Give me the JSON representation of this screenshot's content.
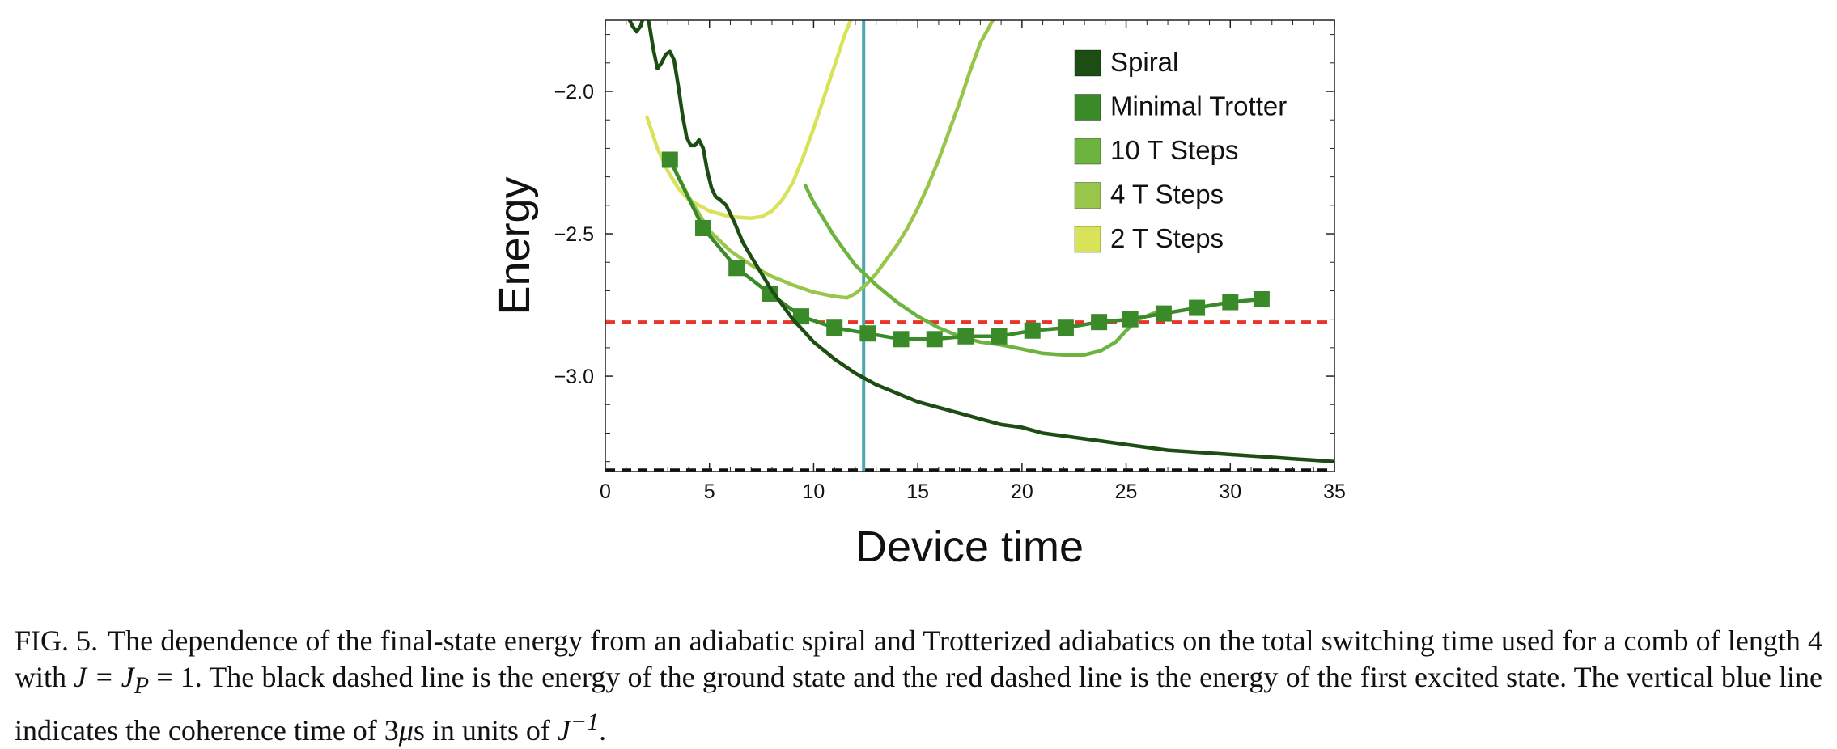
{
  "figure": {
    "caption_label": "FIG. 5.",
    "caption_segments": [
      {
        "text": "The dependence of the final-state energy from an adiabatic spiral and Trotterized adiabatics on the total switching time used for a comb of length 4 with ",
        "math": false
      },
      {
        "text": "J = J",
        "math": true
      },
      {
        "text": "P",
        "math": true,
        "sub": true
      },
      {
        "text": " = 1. The black dashed line is the energy of the ground state and the red dashed line is the energy of the first excited state. The vertical blue line indicates the coherence time of 3",
        "math": false
      },
      {
        "text": "μ",
        "math": true
      },
      {
        "text": "s in units of ",
        "math": false
      },
      {
        "text": "J",
        "math": true
      },
      {
        "text": "−1",
        "math": true,
        "sup": true
      },
      {
        "text": ".",
        "math": false
      }
    ]
  },
  "chart_data": {
    "type": "line",
    "title": "",
    "xlabel": "Device time",
    "ylabel": "Energy",
    "xlim": [
      0,
      35
    ],
    "ylim": [
      -3.335,
      -1.75
    ],
    "xticks": [
      0,
      5,
      10,
      15,
      20,
      25,
      30,
      35
    ],
    "xtick_labels": [
      "0",
      "5",
      "10",
      "15",
      "20",
      "25",
      "30",
      "35"
    ],
    "yticks": [
      -2.0,
      -2.5,
      -3.0
    ],
    "ytick_labels": [
      "−2.0",
      "−2.5",
      "−3.0"
    ],
    "grid": false,
    "legend_position": "top-right",
    "series": [
      {
        "name": "Spiral",
        "color": "#1e4d14",
        "marker": "none",
        "x": [
          1.1,
          1.3,
          1.5,
          1.7,
          1.9,
          2.1,
          2.3,
          2.5,
          2.7,
          2.9,
          3.1,
          3.3,
          3.5,
          3.7,
          3.9,
          4.1,
          4.3,
          4.5,
          4.7,
          4.9,
          5.1,
          5.3,
          5.5,
          5.8,
          6.2,
          6.6,
          7.0,
          7.5,
          8.0,
          8.5,
          9.0,
          9.5,
          10,
          11,
          12,
          13,
          14,
          15,
          16,
          17,
          18,
          19,
          20,
          21,
          22,
          23,
          24,
          25,
          26,
          27,
          28,
          29,
          30,
          31,
          32,
          33,
          34,
          35
        ],
        "y": [
          -1.74,
          -1.77,
          -1.79,
          -1.77,
          -1.72,
          -1.76,
          -1.85,
          -1.92,
          -1.9,
          -1.87,
          -1.86,
          -1.89,
          -1.98,
          -2.08,
          -2.16,
          -2.19,
          -2.19,
          -2.17,
          -2.2,
          -2.28,
          -2.34,
          -2.37,
          -2.38,
          -2.4,
          -2.46,
          -2.53,
          -2.58,
          -2.64,
          -2.7,
          -2.75,
          -2.8,
          -2.84,
          -2.88,
          -2.94,
          -2.99,
          -3.03,
          -3.06,
          -3.09,
          -3.11,
          -3.13,
          -3.15,
          -3.17,
          -3.18,
          -3.2,
          -3.21,
          -3.22,
          -3.23,
          -3.24,
          -3.25,
          -3.26,
          -3.265,
          -3.27,
          -3.275,
          -3.28,
          -3.285,
          -3.29,
          -3.295,
          -3.3
        ]
      },
      {
        "name": "Minimal Trotter",
        "color": "#3b8a2a",
        "marker": "square",
        "x": [
          3.1,
          4.7,
          6.3,
          7.9,
          9.4,
          11.0,
          12.6,
          14.2,
          15.8,
          17.3,
          18.9,
          20.5,
          22.1,
          23.7,
          25.2,
          26.8,
          28.4,
          30.0,
          31.5
        ],
        "y": [
          -2.24,
          -2.48,
          -2.62,
          -2.71,
          -2.79,
          -2.83,
          -2.85,
          -2.87,
          -2.87,
          -2.86,
          -2.86,
          -2.84,
          -2.83,
          -2.81,
          -2.8,
          -2.78,
          -2.76,
          -2.74,
          -2.73
        ]
      },
      {
        "name": "10 T Steps",
        "color": "#6db33f",
        "marker": "none",
        "x": [
          9.6,
          10,
          11,
          12,
          13,
          14,
          15,
          16,
          17,
          18,
          19,
          20,
          21,
          22,
          23,
          23.8,
          24.5,
          25,
          25.6,
          26.3,
          27
        ],
        "y": [
          -2.33,
          -2.39,
          -2.51,
          -2.61,
          -2.68,
          -2.74,
          -2.79,
          -2.83,
          -2.86,
          -2.88,
          -2.89,
          -2.905,
          -2.92,
          -2.925,
          -2.925,
          -2.91,
          -2.88,
          -2.84,
          -2.8,
          -2.78,
          -2.77
        ]
      },
      {
        "name": "4 T Steps",
        "color": "#98c54a",
        "marker": "none",
        "x": [
          3.1,
          4,
          5,
          6,
          7,
          8,
          9,
          10,
          11,
          11.6,
          12,
          12.5,
          13,
          13.5,
          14,
          14.5,
          15,
          15.5,
          16,
          16.5,
          17,
          17.5,
          18,
          18.6
        ],
        "y": [
          -2.24,
          -2.37,
          -2.49,
          -2.56,
          -2.61,
          -2.65,
          -2.68,
          -2.705,
          -2.72,
          -2.725,
          -2.71,
          -2.68,
          -2.64,
          -2.59,
          -2.54,
          -2.48,
          -2.41,
          -2.33,
          -2.24,
          -2.14,
          -2.04,
          -1.93,
          -1.83,
          -1.75
        ]
      },
      {
        "name": "2 T Steps",
        "color": "#d8e35a",
        "marker": "none",
        "x": [
          2.0,
          2.5,
          3,
          3.5,
          4,
          5,
          6,
          7,
          7.5,
          8,
          8.5,
          9,
          9.5,
          10,
          10.5,
          11,
          11.5,
          12
        ],
        "y": [
          -2.09,
          -2.2,
          -2.28,
          -2.34,
          -2.38,
          -2.42,
          -2.44,
          -2.445,
          -2.44,
          -2.42,
          -2.38,
          -2.32,
          -2.23,
          -2.13,
          -2.02,
          -1.91,
          -1.8,
          -1.71
        ]
      }
    ],
    "reference_lines": [
      {
        "orientation": "horizontal",
        "y": -2.81,
        "color": "#e8342b",
        "style": "dashed"
      },
      {
        "orientation": "horizontal",
        "y": -3.33,
        "color": "#111111",
        "style": "dashed"
      },
      {
        "orientation": "vertical",
        "x": 12.4,
        "color": "#4aa8ad",
        "style": "solid"
      }
    ]
  }
}
